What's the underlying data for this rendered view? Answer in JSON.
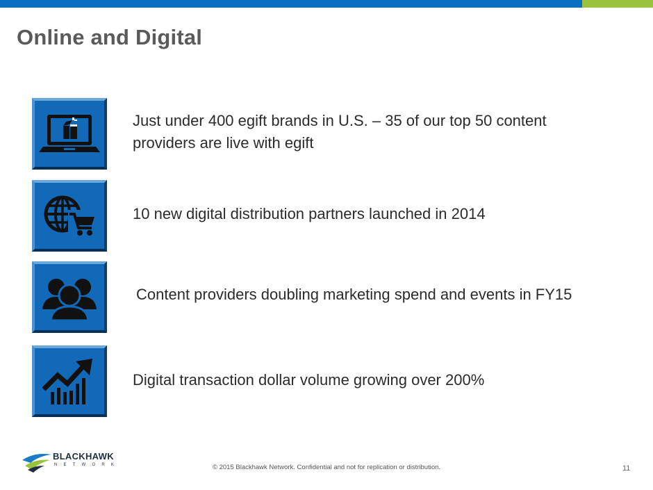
{
  "colors": {
    "top_bar": "#0a6fc1",
    "accent_bar": "#9bc23c",
    "tile": "#1169b7",
    "icon": "#111111"
  },
  "slide": {
    "title": "Online and Digital",
    "page_number": "11"
  },
  "bullets": [
    {
      "icon": "laptop-gift-icon",
      "text": "Just under 400 egift brands in U.S. – 35 of our top 50 content providers are live with egift"
    },
    {
      "icon": "globe-cart-icon",
      "text": "10 new digital distribution partners launched in 2014"
    },
    {
      "icon": "people-group-icon",
      "text": "Content providers doubling marketing spend and events in FY15"
    },
    {
      "icon": "growth-chart-icon",
      "text": "Digital transaction dollar volume growing over 200%"
    }
  ],
  "footer": {
    "copyright": "© 2015 Blackhawk Network. Confidential and not for replication or distribution.",
    "logo_word": "BLACKHAWK",
    "logo_sub": "NETWORK"
  }
}
